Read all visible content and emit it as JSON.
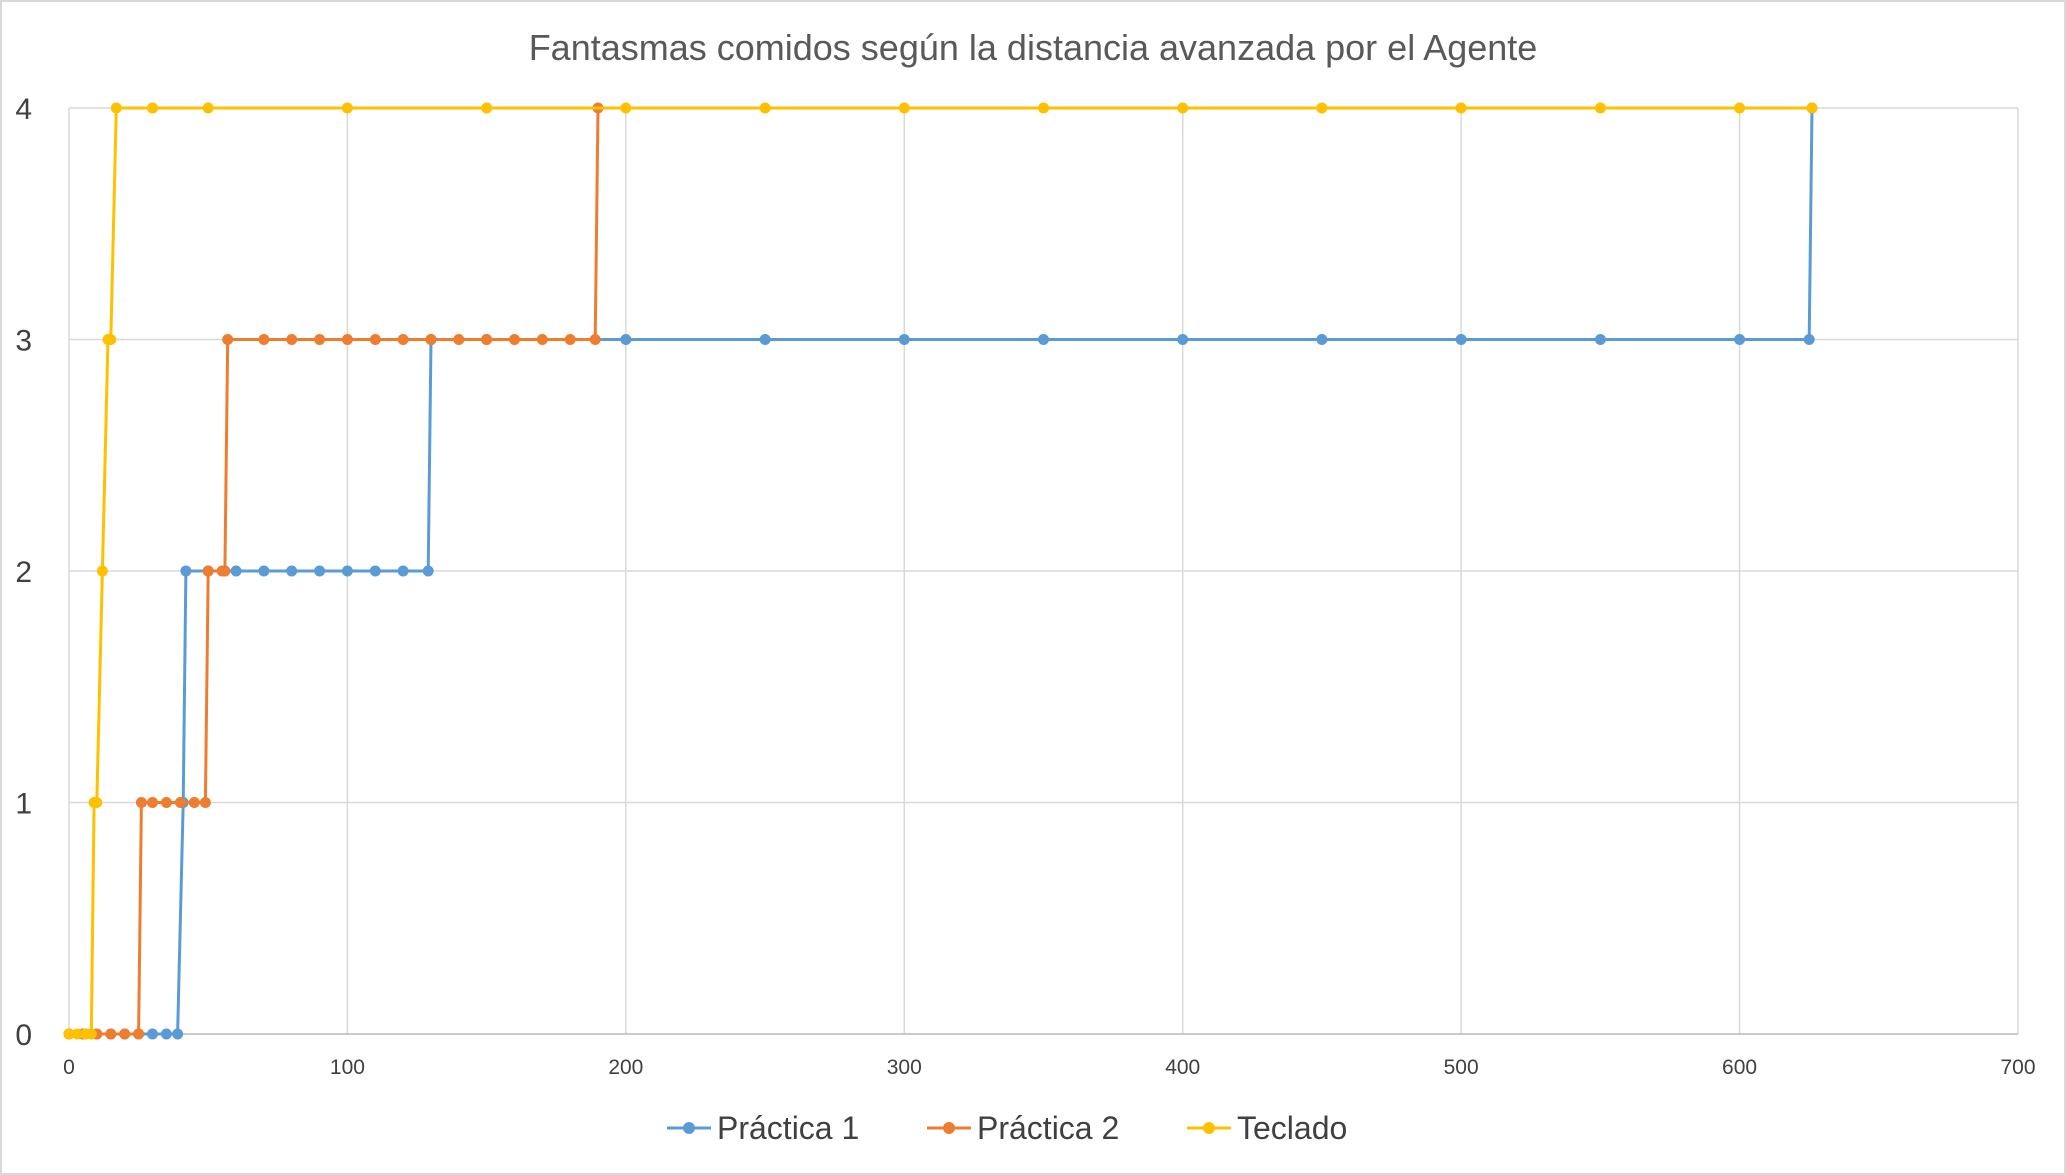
{
  "chart_data": {
    "type": "line",
    "title": "Fantasmas comidos según la distancia avanzada por el Agente",
    "xlabel": "",
    "ylabel": "",
    "xlim": [
      0,
      700
    ],
    "ylim": [
      0,
      4
    ],
    "x_ticks": [
      "0",
      "100",
      "200",
      "300",
      "400",
      "500",
      "600",
      "700"
    ],
    "y_ticks": [
      "0",
      "1",
      "2",
      "3",
      "4"
    ],
    "grid": true,
    "legend_position": "bottom",
    "series": [
      {
        "name": "Práctica 1",
        "color": "#5B9BD5",
        "points": [
          [
            0,
            0
          ],
          [
            5,
            0
          ],
          [
            10,
            0
          ],
          [
            15,
            0
          ],
          [
            20,
            0
          ],
          [
            25,
            0
          ],
          [
            30,
            0
          ],
          [
            35,
            0
          ],
          [
            39,
            0
          ],
          [
            41,
            1
          ],
          [
            42,
            2
          ],
          [
            50,
            2
          ],
          [
            60,
            2
          ],
          [
            70,
            2
          ],
          [
            80,
            2
          ],
          [
            90,
            2
          ],
          [
            100,
            2
          ],
          [
            110,
            2
          ],
          [
            120,
            2
          ],
          [
            129,
            2
          ],
          [
            130,
            3
          ],
          [
            150,
            3
          ],
          [
            200,
            3
          ],
          [
            250,
            3
          ],
          [
            300,
            3
          ],
          [
            350,
            3
          ],
          [
            400,
            3
          ],
          [
            450,
            3
          ],
          [
            500,
            3
          ],
          [
            550,
            3
          ],
          [
            600,
            3
          ],
          [
            625,
            3
          ],
          [
            626,
            4
          ]
        ]
      },
      {
        "name": "Práctica 2",
        "color": "#ED7D31",
        "points": [
          [
            0,
            0
          ],
          [
            5,
            0
          ],
          [
            10,
            0
          ],
          [
            15,
            0
          ],
          [
            20,
            0
          ],
          [
            25,
            0
          ],
          [
            26,
            1
          ],
          [
            30,
            1
          ],
          [
            35,
            1
          ],
          [
            40,
            1
          ],
          [
            45,
            1
          ],
          [
            49,
            1
          ],
          [
            50,
            2
          ],
          [
            55,
            2
          ],
          [
            56,
            2
          ],
          [
            57,
            3
          ],
          [
            70,
            3
          ],
          [
            80,
            3
          ],
          [
            90,
            3
          ],
          [
            100,
            3
          ],
          [
            110,
            3
          ],
          [
            120,
            3
          ],
          [
            130,
            3
          ],
          [
            140,
            3
          ],
          [
            150,
            3
          ],
          [
            160,
            3
          ],
          [
            170,
            3
          ],
          [
            180,
            3
          ],
          [
            189,
            3
          ],
          [
            190,
            4
          ]
        ]
      },
      {
        "name": "Teclado",
        "color": "#FFC000",
        "points": [
          [
            0,
            0
          ],
          [
            3,
            0
          ],
          [
            6,
            0
          ],
          [
            8,
            0
          ],
          [
            9,
            1
          ],
          [
            10,
            1
          ],
          [
            12,
            2
          ],
          [
            14,
            3
          ],
          [
            15,
            3
          ],
          [
            17,
            4
          ],
          [
            30,
            4
          ],
          [
            50,
            4
          ],
          [
            100,
            4
          ],
          [
            150,
            4
          ],
          [
            200,
            4
          ],
          [
            250,
            4
          ],
          [
            300,
            4
          ],
          [
            350,
            4
          ],
          [
            400,
            4
          ],
          [
            450,
            4
          ],
          [
            500,
            4
          ],
          [
            550,
            4
          ],
          [
            600,
            4
          ],
          [
            626,
            4
          ]
        ]
      }
    ]
  }
}
